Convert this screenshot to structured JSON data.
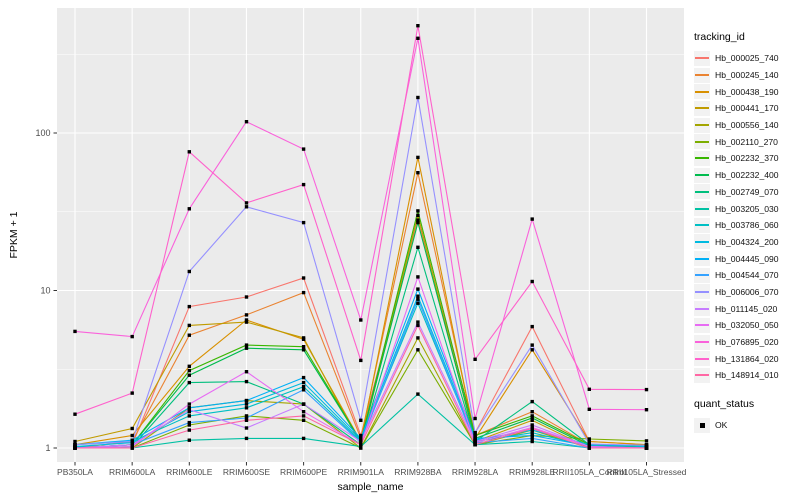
{
  "chart_data": {
    "type": "line",
    "title": "",
    "xlabel": "sample_name",
    "ylabel": "FPKM + 1",
    "yscale": "log10",
    "ylim": [
      1,
      600
    ],
    "yticks": [
      1,
      10,
      100
    ],
    "ytick_labels": [
      "1",
      "10",
      "100"
    ],
    "grid": true,
    "panel_bg": "#EBEBEB",
    "grid_color": "#FFFFFF",
    "tick_text_color": "#4D4D4D",
    "marker": "black-square",
    "legend_position": "right",
    "legend_title": "tracking_id",
    "legend2_title": "quant_status",
    "legend2_items": [
      "OK"
    ],
    "categories": [
      "PB350LA",
      "RRIM600LA",
      "RRIM600LE",
      "RRIM600SE",
      "RRIM600PE",
      "RRIM901LA",
      "RRIM928BA",
      "RRIM928LA",
      "RRIM928LE",
      "RRII105LA_Control",
      "RRII105LA_Stressed"
    ],
    "series": [
      {
        "name": "Hb_000025_740",
        "color": "#F8766D",
        "values": [
          1.0,
          1.05,
          7.9,
          9.1,
          12.0,
          1.2,
          28,
          1.25,
          5.9,
          1.1,
          1.05
        ]
      },
      {
        "name": "Hb_000245_140",
        "color": "#EA8331",
        "values": [
          1.0,
          1.1,
          5.2,
          7.0,
          9.7,
          1.15,
          56,
          1.2,
          1.7,
          1.05,
          1.0
        ]
      },
      {
        "name": "Hb_000438_190",
        "color": "#D89000",
        "values": [
          1.05,
          1.2,
          3.3,
          6.5,
          4.9,
          1.1,
          70,
          1.15,
          4.2,
          1.1,
          1.05
        ]
      },
      {
        "name": "Hb_000441_170",
        "color": "#C09B00",
        "values": [
          1.1,
          1.33,
          6.0,
          6.3,
          5.0,
          1.05,
          30,
          1.1,
          1.5,
          1.0,
          1.0
        ]
      },
      {
        "name": "Hb_000556_140",
        "color": "#A3A500",
        "values": [
          1.0,
          1.0,
          1.8,
          2.0,
          1.9,
          1.0,
          5.0,
          1.05,
          1.3,
          1.0,
          1.0
        ]
      },
      {
        "name": "Hb_002110_270",
        "color": "#7CAE00",
        "values": [
          1.0,
          1.0,
          1.4,
          1.6,
          1.5,
          1.0,
          4.2,
          1.05,
          1.2,
          1.14,
          1.11
        ]
      },
      {
        "name": "Hb_002232_370",
        "color": "#39B600",
        "values": [
          1.0,
          1.05,
          3.1,
          4.5,
          4.4,
          1.1,
          32,
          1.2,
          1.6,
          1.05,
          1.02
        ]
      },
      {
        "name": "Hb_002232_400",
        "color": "#00BB4E",
        "values": [
          1.0,
          1.05,
          2.9,
          4.3,
          4.2,
          1.1,
          27,
          1.15,
          1.55,
          1.03,
          1.02
        ]
      },
      {
        "name": "Hb_002749_070",
        "color": "#00BF7D",
        "values": [
          1.0,
          1.02,
          2.6,
          2.64,
          1.9,
          1.05,
          18.8,
          1.1,
          1.97,
          1.05,
          1.03
        ]
      },
      {
        "name": "Hb_003205_030",
        "color": "#00C1A3",
        "values": [
          1.02,
          1.0,
          1.12,
          1.15,
          1.15,
          1.02,
          2.2,
          1.05,
          1.1,
          1.0,
          1.0
        ]
      },
      {
        "name": "Hb_003786_060",
        "color": "#00BFC4",
        "values": [
          1.05,
          1.1,
          1.6,
          1.8,
          2.45,
          1.1,
          8.3,
          1.1,
          1.25,
          1.02,
          1.0
        ]
      },
      {
        "name": "Hb_004324_200",
        "color": "#00BAE0",
        "values": [
          1.02,
          1.08,
          1.7,
          1.9,
          2.6,
          1.12,
          9.2,
          1.12,
          1.3,
          1.05,
          1.02
        ]
      },
      {
        "name": "Hb_004445_090",
        "color": "#00B0F6",
        "values": [
          1.05,
          1.12,
          1.8,
          2.0,
          2.8,
          1.15,
          10.2,
          1.15,
          1.2,
          1.03,
          1.0
        ]
      },
      {
        "name": "Hb_004544_070",
        "color": "#35A2FF",
        "values": [
          1.0,
          1.05,
          1.45,
          1.55,
          2.34,
          1.08,
          8.8,
          1.08,
          1.15,
          1.0,
          1.0
        ]
      },
      {
        "name": "Hb_006006_070",
        "color": "#9590FF",
        "values": [
          1.05,
          1.1,
          13.2,
          34,
          27,
          1.5,
          168,
          1.25,
          4.5,
          1.06,
          1.04
        ]
      },
      {
        "name": "Hb_011145_020",
        "color": "#C77CFF",
        "values": [
          1.0,
          1.05,
          1.75,
          1.34,
          1.9,
          1.1,
          6.3,
          1.1,
          1.4,
          1.02,
          1.0
        ]
      },
      {
        "name": "Hb_032050_050",
        "color": "#E76BF3",
        "values": [
          1.0,
          1.02,
          1.9,
          3.05,
          1.7,
          1.05,
          12.2,
          1.08,
          1.35,
          1.02,
          1.0
        ]
      },
      {
        "name": "Hb_076895_020",
        "color": "#FA62DB",
        "values": [
          5.5,
          5.1,
          33,
          118,
          79,
          6.5,
          399,
          1.54,
          28.4,
          1.76,
          1.75
        ]
      },
      {
        "name": "Hb_131864_020",
        "color": "#FF61CC",
        "values": [
          1.64,
          2.23,
          76,
          36,
          47,
          3.6,
          480,
          3.66,
          11.4,
          2.36,
          2.35
        ]
      },
      {
        "name": "Hb_148914_010",
        "color": "#FF67A4",
        "values": [
          1.0,
          1.0,
          1.3,
          1.5,
          1.6,
          1.05,
          6.0,
          1.05,
          1.33,
          1.0,
          1.0
        ]
      }
    ]
  }
}
